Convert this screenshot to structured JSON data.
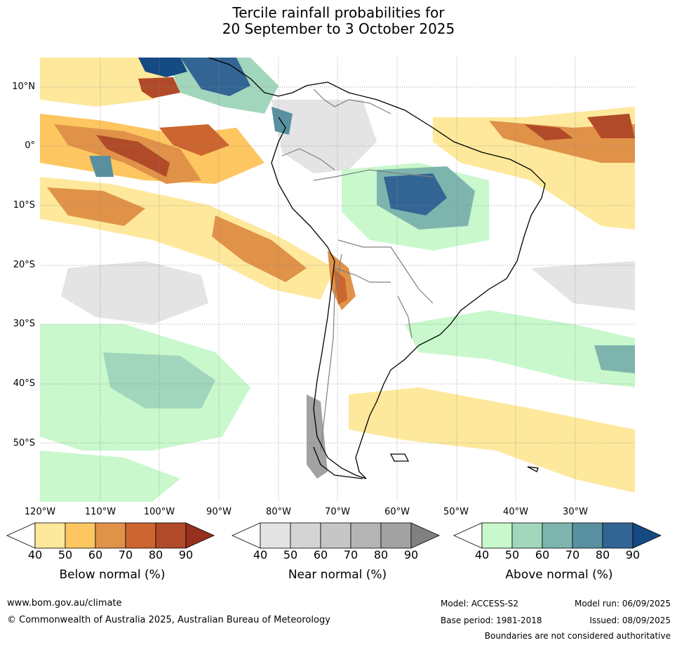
{
  "title": {
    "line1": "Tercile rainfall probabilities for",
    "line2": "20 September to 3 October 2025"
  },
  "map": {
    "lat_labels": [
      "10°N",
      "0°",
      "10°S",
      "20°S",
      "30°S",
      "40°S",
      "50°S"
    ],
    "lon_labels": [
      "120°W",
      "110°W",
      "100°W",
      "90°W",
      "80°W",
      "70°W",
      "60°W",
      "50°W",
      "40°W",
      "30°W"
    ],
    "region": "South America",
    "background": "#ffffff",
    "coastline_color": "#000000",
    "border_color": "#808080",
    "gridlines": "dotted"
  },
  "legends": {
    "below": {
      "title": "Below normal (%)",
      "ticks": [
        "40",
        "50",
        "60",
        "70",
        "80",
        "90"
      ],
      "colors": [
        "#ffffff",
        "#fee89c",
        "#fdc661",
        "#e09248",
        "#cc6530",
        "#b14a29",
        "#97301f"
      ]
    },
    "near": {
      "title": "Near normal (%)",
      "ticks": [
        "40",
        "50",
        "60",
        "70",
        "80",
        "90"
      ],
      "colors": [
        "#ffffff",
        "#e4e4e4",
        "#d4d4d4",
        "#c6c6c6",
        "#b4b4b4",
        "#a2a2a2",
        "#808080"
      ]
    },
    "above": {
      "title": "Above normal (%)",
      "ticks": [
        "40",
        "50",
        "60",
        "70",
        "80",
        "90"
      ],
      "colors": [
        "#ffffff",
        "#c8f8cc",
        "#a1d6bc",
        "#7db5ae",
        "#5990a0",
        "#336594",
        "#154a82"
      ]
    }
  },
  "footer": {
    "url": "www.bom.gov.au/climate",
    "copyright": "© Commonwealth of Australia 2025, Australian Bureau of Meteorology",
    "model": "Model: ACCESS-S2",
    "base_period": "Base period: 1981-2018",
    "model_run": "Model run: 06/09/2025",
    "issued": "Issued: 08/09/2025",
    "disclaimer": "Boundaries are not considered authoritative"
  }
}
